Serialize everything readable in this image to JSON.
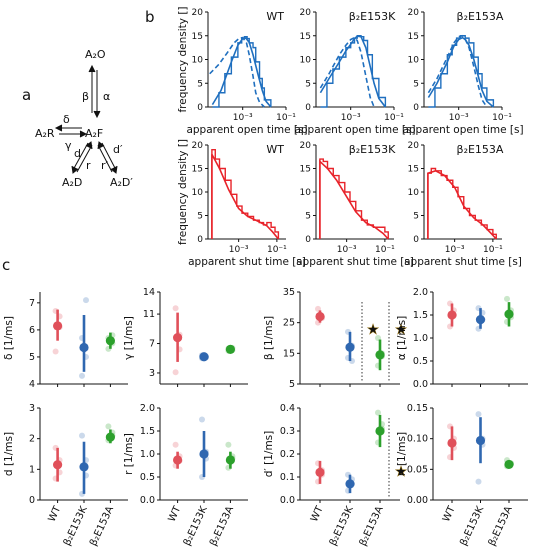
{
  "panel_labels": {
    "a": "a",
    "b": "b",
    "c": "c"
  },
  "scheme": {
    "A2O": "A₂O",
    "A2R": "A₂R",
    "A2F": "A₂F",
    "A2D": "A₂D",
    "A2Dp": "A₂D′",
    "beta": "β",
    "alpha": "α",
    "delta": "δ",
    "gamma": "γ",
    "d": "d",
    "r": "r",
    "dp": "d′",
    "rp": "r′"
  },
  "colors": {
    "blue": "#1f6fbf",
    "red": "#e8232a",
    "red_b": "#e0505a",
    "blue_c": "#2f67b0",
    "green": "#2ca02c",
    "star": "#f2b40f",
    "axis": "#111111"
  },
  "hist_text": {
    "ylabel": "frequency density []",
    "xlabel_open": "apparent open time [s]",
    "xlabel_shut": "apparent shut time [s]",
    "xtick_mid": "10⁻³",
    "xtick_right": "10⁻¹",
    "yticks": [
      "0",
      "5",
      "10",
      "15",
      "20"
    ],
    "titles": [
      "WT",
      "β₂E153K",
      "β₂E153A"
    ]
  },
  "dot_text": {
    "categories": [
      "WT",
      "β₂E153K",
      "β₂E153A"
    ]
  },
  "chart_data": [
    {
      "id": "open-time-WT",
      "type": "line",
      "title": "WT",
      "xlabel": "apparent open time [s]",
      "ylabel": "frequency density []",
      "log_x": true,
      "xlim": [
        2.5e-05,
        0.1
      ],
      "ylim": [
        0,
        20
      ],
      "series": [
        {
          "style": "histogram",
          "x": [
            4e-05,
            8e-05,
            0.00015,
            0.0003,
            0.0006,
            0.0009,
            0.0012,
            0.0016,
            0.002,
            0.003,
            0.004,
            0.006,
            0.008,
            0.01,
            0.02
          ],
          "y": [
            0,
            3,
            7,
            10.5,
            13.5,
            14.5,
            14.8,
            14.4,
            13.5,
            12.5,
            9.5,
            6,
            4,
            1.5,
            0
          ]
        },
        {
          "style": "fit",
          "x": [
            4e-05,
            0.0001,
            0.0003,
            0.0006,
            0.001,
            0.0014,
            0.002,
            0.003,
            0.005,
            0.008,
            0.012,
            0.02
          ],
          "y": [
            0.5,
            3.5,
            9.5,
            13,
            14.4,
            14.5,
            13.6,
            11,
            7,
            3.5,
            1.2,
            0
          ]
        },
        {
          "style": "dashed",
          "x": [
            3e-05,
            8e-05,
            0.0002,
            0.0004,
            0.0007,
            0.001,
            0.0015,
            0.002,
            0.003,
            0.004,
            0.006,
            0.01
          ],
          "y": [
            7,
            9,
            11.5,
            13.5,
            14.5,
            14.6,
            13.5,
            11,
            6.5,
            3,
            1,
            0
          ]
        }
      ]
    },
    {
      "id": "open-time-E153K",
      "type": "line",
      "title": "β₂E153K",
      "xlabel": "apparent open time [s]",
      "log_x": true,
      "xlim": [
        2.5e-05,
        0.1
      ],
      "ylim": [
        0,
        20
      ],
      "series": [
        {
          "style": "histogram",
          "x": [
            4e-05,
            8e-05,
            0.00015,
            0.0003,
            0.0006,
            0.001,
            0.0015,
            0.002,
            0.003,
            0.004,
            0.006,
            0.01,
            0.02,
            0.04
          ],
          "y": [
            0,
            5,
            8,
            10.5,
            12.5,
            13.5,
            14.5,
            15,
            14.8,
            14,
            11,
            6,
            2,
            0
          ]
        },
        {
          "style": "fit",
          "x": [
            4e-05,
            0.0001,
            0.0003,
            0.0006,
            0.001,
            0.0015,
            0.002,
            0.003,
            0.005,
            0.008,
            0.012,
            0.02,
            0.04
          ],
          "y": [
            3,
            6,
            9.5,
            11.8,
            13.2,
            14.4,
            14.9,
            14.8,
            12.5,
            8.5,
            5,
            1.8,
            0
          ]
        },
        {
          "style": "dashed",
          "x": [
            4e-05,
            0.0001,
            0.0003,
            0.0006,
            0.001,
            0.0015,
            0.002,
            0.003,
            0.005,
            0.008,
            0.012
          ],
          "y": [
            4,
            7,
            11,
            13,
            14.2,
            14.6,
            14,
            11.5,
            6.5,
            2,
            0
          ]
        }
      ]
    },
    {
      "id": "open-time-E153A",
      "type": "line",
      "title": "β₂E153A",
      "xlabel": "apparent open time [s]",
      "log_x": true,
      "xlim": [
        2.5e-05,
        0.1
      ],
      "ylim": [
        0,
        20
      ],
      "series": [
        {
          "style": "histogram",
          "x": [
            4e-05,
            8e-05,
            0.00015,
            0.0003,
            0.0005,
            0.0008,
            0.0012,
            0.002,
            0.003,
            0.005,
            0.008,
            0.012,
            0.02,
            0.04
          ],
          "y": [
            0,
            4,
            7,
            11,
            13,
            14.5,
            15,
            14.5,
            13.5,
            10.5,
            7,
            4,
            1.5,
            0
          ]
        },
        {
          "style": "fit",
          "x": [
            4e-05,
            0.0001,
            0.0003,
            0.0006,
            0.001,
            0.0015,
            0.002,
            0.003,
            0.005,
            0.008,
            0.012,
            0.02,
            0.04
          ],
          "y": [
            2,
            5,
            9.5,
            12.8,
            14.2,
            14.6,
            14.2,
            13,
            10,
            6.5,
            3.5,
            1.2,
            0
          ]
        },
        {
          "style": "dashed",
          "x": [
            4e-05,
            0.0001,
            0.0003,
            0.0006,
            0.001,
            0.0015,
            0.002,
            0.003,
            0.005,
            0.008,
            0.012,
            0.02
          ],
          "y": [
            3,
            6,
            10.5,
            13.5,
            14.8,
            15,
            14.3,
            12.5,
            8.5,
            4.5,
            1.5,
            0
          ]
        }
      ]
    },
    {
      "id": "shut-time-WT",
      "type": "line",
      "title": "WT",
      "xlabel": "apparent shut time [s]",
      "ylabel": "frequency density []",
      "log_x": true,
      "xlim": [
        2.5e-05,
        0.3
      ],
      "ylim": [
        0,
        20
      ],
      "series": [
        {
          "style": "histogram",
          "x": [
            4e-05,
            4e-05,
            6e-05,
            0.0001,
            0.0002,
            0.0004,
            0.0008,
            0.0015,
            0.003,
            0.006,
            0.012,
            0.02,
            0.03,
            0.05,
            0.08,
            0.12
          ],
          "y": [
            0,
            19,
            17,
            15,
            12.5,
            9.5,
            7,
            5.5,
            4.8,
            4,
            3.5,
            3,
            3.5,
            2.5,
            1.5,
            0
          ]
        },
        {
          "style": "fit",
          "x": [
            4e-05,
            4e-05,
            0.0001,
            0.0003,
            0.001,
            0.003,
            0.01,
            0.03,
            0.06,
            0.12
          ],
          "y": [
            0,
            18,
            15,
            10.5,
            6.5,
            4.8,
            3.8,
            2.8,
            1.5,
            0
          ]
        }
      ]
    },
    {
      "id": "shut-time-E153K",
      "type": "line",
      "title": "β₂E153K",
      "xlabel": "apparent shut time [s]",
      "log_x": true,
      "xlim": [
        2.5e-05,
        0.3
      ],
      "ylim": [
        0,
        20
      ],
      "series": [
        {
          "style": "histogram",
          "x": [
            4e-05,
            4e-05,
            6e-05,
            0.0001,
            0.0002,
            0.0004,
            0.0008,
            0.0015,
            0.003,
            0.006,
            0.012,
            0.025,
            0.05,
            0.1,
            0.15
          ],
          "y": [
            0,
            17,
            16.5,
            15,
            13.5,
            12,
            10,
            8,
            6,
            4,
            3,
            2.5,
            2.5,
            1.5,
            0
          ]
        },
        {
          "style": "fit",
          "x": [
            4e-05,
            4e-05,
            0.0001,
            0.0003,
            0.001,
            0.003,
            0.01,
            0.03,
            0.08,
            0.15
          ],
          "y": [
            0,
            16.5,
            15,
            12.5,
            9,
            5.8,
            3.5,
            2.5,
            1.2,
            0
          ]
        }
      ]
    },
    {
      "id": "shut-time-E153A",
      "type": "line",
      "title": "β₂E153A",
      "xlabel": "apparent shut time [s]",
      "log_x": true,
      "xlim": [
        2.5e-05,
        0.3
      ],
      "ylim": [
        0,
        20
      ],
      "series": [
        {
          "style": "histogram",
          "x": [
            4e-05,
            4e-05,
            6e-05,
            0.0001,
            0.0002,
            0.0004,
            0.0008,
            0.0015,
            0.003,
            0.006,
            0.012,
            0.025,
            0.05,
            0.1,
            0.15
          ],
          "y": [
            0,
            14,
            15,
            14.5,
            13.5,
            12.5,
            11,
            9,
            6.5,
            5,
            4,
            3,
            2,
            1,
            0
          ]
        },
        {
          "style": "fit",
          "x": [
            4e-05,
            4e-05,
            0.0001,
            0.0003,
            0.001,
            0.003,
            0.01,
            0.03,
            0.08,
            0.15
          ],
          "y": [
            0,
            14,
            14.5,
            13.5,
            11,
            7,
            4.5,
            3,
            1.2,
            0
          ]
        }
      ]
    },
    {
      "id": "rate-delta",
      "type": "scatter",
      "ylabel": "δ [1/ms]",
      "ylim": [
        4,
        7.4
      ],
      "yticks": [
        4,
        5,
        6,
        7
      ],
      "categories": [
        "WT",
        "β₂E153K",
        "β₂E153A"
      ],
      "means": [
        6.15,
        5.35,
        5.6
      ],
      "ci": [
        [
          5.6,
          6.75
        ],
        [
          4.45,
          6.55
        ],
        [
          5.3,
          5.9
        ]
      ],
      "points": [
        [
          6.7,
          6.1,
          5.2,
          6.5
        ],
        [
          5.7,
          5.0,
          4.3,
          7.1
        ],
        [
          5.7,
          5.5,
          5.3,
          5.8
        ]
      ]
    },
    {
      "id": "rate-gamma",
      "type": "scatter",
      "ylabel": "γ [1/ms]",
      "ylim": [
        1.5,
        14
      ],
      "yticks": [
        3,
        7,
        11,
        14
      ],
      "categories": [
        "WT",
        "β₂E153K",
        "β₂E153A"
      ],
      "means": [
        7.8,
        5.2,
        6.2
      ],
      "ci": [
        [
          4.5,
          11.2
        ],
        [
          4.9,
          5.5
        ],
        [
          5.9,
          6.5
        ]
      ],
      "points": [
        [
          11.8,
          8.2,
          3.1,
          6.2
        ],
        [
          5.4,
          5.1,
          5.0,
          5.2
        ],
        [
          6.3,
          6.1,
          6.0,
          6.4
        ]
      ]
    },
    {
      "id": "rate-beta",
      "type": "scatter",
      "ylabel": "β [1/ms]",
      "ylim": [
        5,
        35
      ],
      "yticks": [
        5,
        15,
        25,
        35
      ],
      "categories": [
        "WT",
        "β₂E153K",
        "β₂E153A"
      ],
      "means": [
        27,
        17,
        14.5
      ],
      "ci": [
        [
          25,
          29
        ],
        [
          12.5,
          22
        ],
        [
          9.5,
          19.5
        ]
      ],
      "points": [
        [
          29.5,
          27,
          25,
          26.5
        ],
        [
          22,
          17.5,
          13.5,
          12.5
        ],
        [
          20,
          14,
          11,
          15
        ]
      ],
      "significance": [
        "★",
        "★"
      ]
    },
    {
      "id": "rate-alpha",
      "type": "scatter",
      "ylabel": "α [1/ms]",
      "ylim": [
        0,
        2
      ],
      "yticks": [
        0.0,
        0.5,
        1.0,
        1.5,
        2.0
      ],
      "categories": [
        "WT",
        "β₂E153K",
        "β₂E153A"
      ],
      "means": [
        1.5,
        1.4,
        1.52
      ],
      "ci": [
        [
          1.25,
          1.75
        ],
        [
          1.2,
          1.65
        ],
        [
          1.25,
          1.78
        ]
      ],
      "points": [
        [
          1.75,
          1.5,
          1.25,
          1.6
        ],
        [
          1.65,
          1.4,
          1.2,
          1.55
        ],
        [
          1.85,
          1.45,
          1.35,
          1.6
        ]
      ]
    },
    {
      "id": "rate-d",
      "type": "scatter",
      "ylabel": "d [1/ms]",
      "ylim": [
        0,
        3
      ],
      "yticks": [
        0,
        1,
        2,
        3
      ],
      "categories": [
        "WT",
        "β₂E153K",
        "β₂E153A"
      ],
      "means": [
        1.15,
        1.08,
        2.05
      ],
      "ci": [
        [
          0.6,
          1.7
        ],
        [
          0.2,
          1.9
        ],
        [
          1.85,
          2.3
        ]
      ],
      "points": [
        [
          1.7,
          1.3,
          0.7,
          0.9
        ],
        [
          2.1,
          1.3,
          0.2,
          0.8
        ],
        [
          2.4,
          2.1,
          1.95,
          2.2
        ]
      ]
    },
    {
      "id": "rate-r",
      "type": "scatter",
      "ylabel": "r [1/ms]",
      "ylim": [
        0,
        2
      ],
      "yticks": [
        0.0,
        0.5,
        1.0,
        1.5,
        2.0
      ],
      "categories": [
        "WT",
        "β₂E153K",
        "β₂E153A"
      ],
      "means": [
        0.87,
        1.0,
        0.87
      ],
      "ci": [
        [
          0.68,
          1.05
        ],
        [
          0.5,
          1.5
        ],
        [
          0.68,
          1.05
        ]
      ],
      "points": [
        [
          1.2,
          0.85,
          0.75,
          0.95
        ],
        [
          1.75,
          1.05,
          0.5,
          0.9
        ],
        [
          1.2,
          0.9,
          0.7,
          0.95
        ]
      ]
    },
    {
      "id": "rate-dprime",
      "type": "scatter",
      "ylabel": "d′ [1/ms]",
      "ylim": [
        0,
        0.4
      ],
      "yticks": [
        0.0,
        0.1,
        0.2,
        0.3,
        0.4
      ],
      "categories": [
        "WT",
        "β₂E153K",
        "β₂E153A"
      ],
      "means": [
        0.12,
        0.07,
        0.3
      ],
      "ci": [
        [
          0.07,
          0.17
        ],
        [
          0.03,
          0.11
        ],
        [
          0.23,
          0.37
        ]
      ],
      "points": [
        [
          0.16,
          0.11,
          0.08,
          0.13
        ],
        [
          0.11,
          0.07,
          0.04,
          0.09
        ],
        [
          0.38,
          0.31,
          0.25,
          0.33
        ]
      ],
      "significance": [
        "★"
      ]
    },
    {
      "id": "rate-rprime",
      "type": "scatter",
      "ylabel": "r′ [1/ms]",
      "ylim": [
        0,
        0.15
      ],
      "yticks": [
        0.0,
        0.05,
        0.1,
        0.15
      ],
      "categories": [
        "WT",
        "β₂E153K",
        "β₂E153A"
      ],
      "means": [
        0.093,
        0.097,
        0.058
      ],
      "ci": [
        [
          0.065,
          0.12
        ],
        [
          0.06,
          0.135
        ],
        [
          0.052,
          0.064
        ]
      ],
      "points": [
        [
          0.12,
          0.1,
          0.07,
          0.085
        ],
        [
          0.14,
          0.1,
          0.03,
          0.09
        ],
        [
          0.065,
          0.058,
          0.055,
          0.06
        ]
      ]
    }
  ]
}
